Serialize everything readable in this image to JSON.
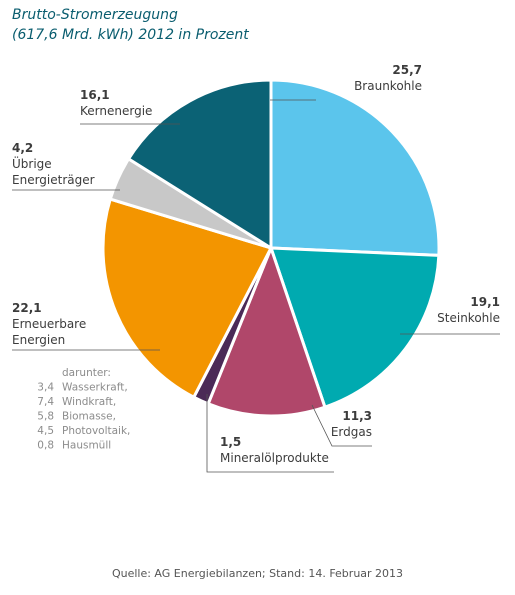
{
  "title_line1": "Brutto-Stromerzeugung",
  "title_line2": "(617,6 Mrd. kWh) 2012 in Prozent",
  "source": "Quelle: AG Energiebilanzen; Stand: 14. Februar 2013",
  "chart_data": {
    "type": "pie",
    "title": "Brutto-Stromerzeugung (617,6 Mrd. kWh) 2012 in Prozent",
    "slices": [
      {
        "value": 25.7,
        "value_label": "25,7",
        "label_lines": [
          "Braunkohle"
        ],
        "color": "#5bc5ec"
      },
      {
        "value": 19.1,
        "value_label": "19,1",
        "label_lines": [
          "Steinkohle"
        ],
        "color": "#00aab0"
      },
      {
        "value": 11.3,
        "value_label": "11,3",
        "label_lines": [
          "Erdgas"
        ],
        "color": "#b0476a"
      },
      {
        "value": 1.5,
        "value_label": "1,5",
        "label_lines": [
          "Mineralölprodukte"
        ],
        "color": "#4b2a57"
      },
      {
        "value": 22.1,
        "value_label": "22,1",
        "label_lines": [
          "Erneuerbare",
          "Energien"
        ],
        "color": "#f39500"
      },
      {
        "value": 4.2,
        "value_label": "4,2",
        "label_lines": [
          "Übrige",
          "Energieträger"
        ],
        "color": "#c8c8c8"
      },
      {
        "value": 16.1,
        "value_label": "16,1",
        "label_lines": [
          "Kernenergie"
        ],
        "color": "#0b6275"
      }
    ],
    "renewables_breakdown": {
      "heading": "darunter:",
      "items": [
        {
          "value": 3.4,
          "value_label": "3,4",
          "label": "Wasserkraft,"
        },
        {
          "value": 7.4,
          "value_label": "7,4",
          "label": "Windkraft,"
        },
        {
          "value": 5.8,
          "value_label": "5,8",
          "label": "Biomasse,"
        },
        {
          "value": 4.5,
          "value_label": "4,5",
          "label": "Photovoltaik,"
        },
        {
          "value": 0.8,
          "value_label": "0,8",
          "label": "Hausmüll"
        }
      ]
    }
  }
}
